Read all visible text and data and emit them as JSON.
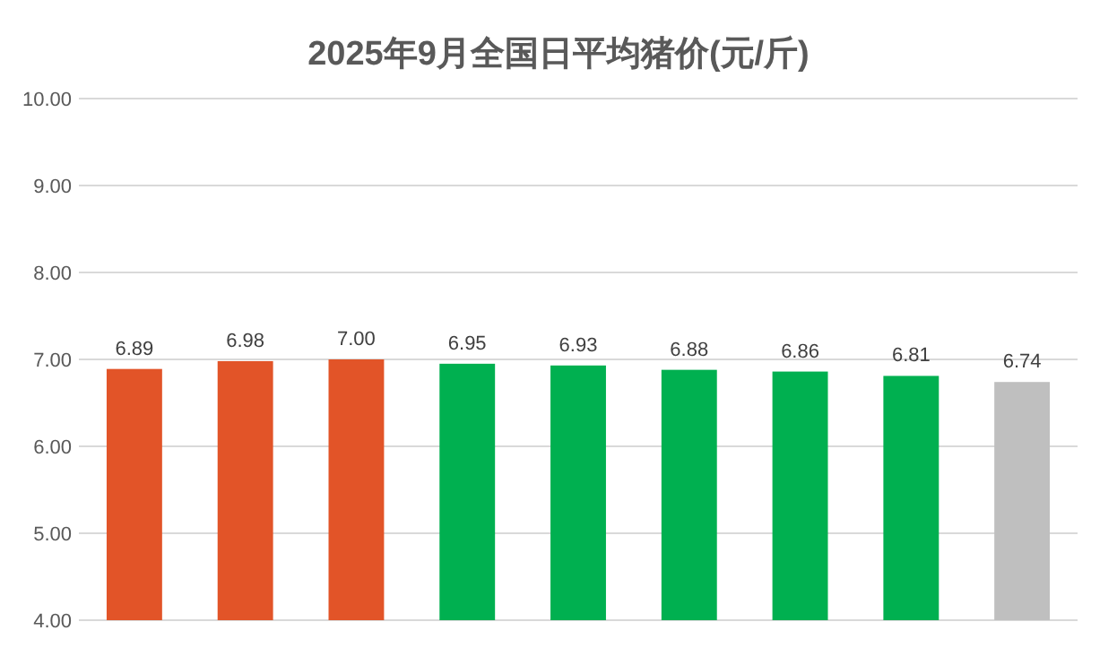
{
  "chart_data": {
    "type": "bar",
    "title": "2025年9月全国日平均猪价(元/斤)",
    "categories": [
      null,
      null,
      null,
      null,
      null,
      null,
      null,
      null,
      null
    ],
    "values": [
      6.89,
      6.98,
      7.0,
      6.95,
      6.93,
      6.88,
      6.86,
      6.81,
      6.74
    ],
    "value_labels": [
      "6.89",
      "6.98",
      "7.00",
      "6.95",
      "6.93",
      "6.88",
      "6.86",
      "6.81",
      "6.74"
    ],
    "colors": [
      "#e25428",
      "#e25428",
      "#e25428",
      "#00b050",
      "#00b050",
      "#00b050",
      "#00b050",
      "#00b050",
      "#bfbfbf"
    ],
    "ylim": [
      4,
      10
    ],
    "yticks": [
      {
        "value": 4,
        "label": "4.00"
      },
      {
        "value": 5,
        "label": "5.00"
      },
      {
        "value": 6,
        "label": "6.00"
      },
      {
        "value": 7,
        "label": "7.00"
      },
      {
        "value": 8,
        "label": "8.00"
      },
      {
        "value": 9,
        "label": "9.00"
      },
      {
        "value": 10,
        "label": "10.00"
      }
    ],
    "grid": true
  }
}
